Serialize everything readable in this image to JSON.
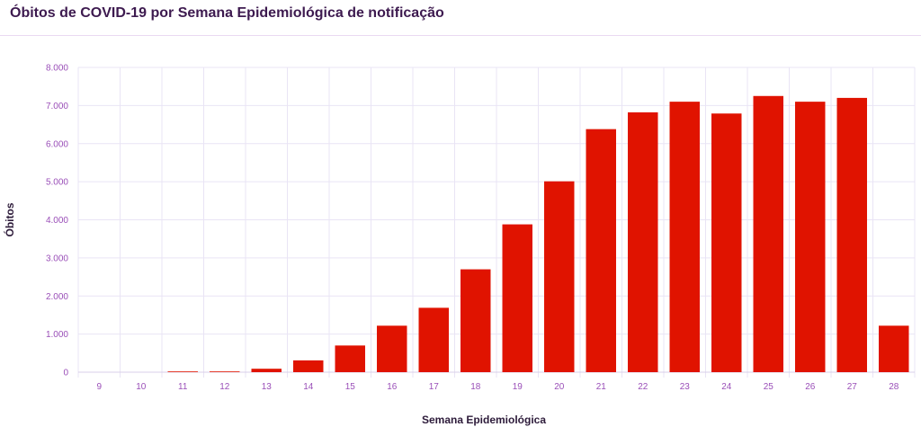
{
  "page": {
    "title": "Óbitos de COVID-19 por Semana Epidemiológica de notificação"
  },
  "colors": {
    "bar": "#e01300",
    "grid": "#e9e4f5",
    "tick_text": "#9a4fb8",
    "title": "#3d1a4f"
  },
  "chart_data": {
    "type": "bar",
    "title": "Óbitos de COVID-19 por Semana Epidemiológica de notificação",
    "xlabel": "Semana Epidemiológica",
    "ylabel": "Óbitos",
    "categories": [
      "9",
      "10",
      "11",
      "12",
      "13",
      "14",
      "15",
      "16",
      "17",
      "18",
      "19",
      "20",
      "21",
      "22",
      "23",
      "24",
      "25",
      "26",
      "27",
      "28"
    ],
    "values": [
      0,
      0,
      1,
      17,
      90,
      310,
      700,
      1220,
      1690,
      2700,
      3880,
      5010,
      6380,
      6820,
      7100,
      6790,
      7250,
      7100,
      7200,
      1220
    ],
    "ylim": [
      0,
      8000
    ],
    "yticks": [
      0,
      1000,
      2000,
      3000,
      4000,
      5000,
      6000,
      7000,
      8000
    ],
    "ytick_labels": [
      "0",
      "1.000",
      "2.000",
      "3.000",
      "4.000",
      "5.000",
      "6.000",
      "7.000",
      "8.000"
    ],
    "grid": true,
    "legend": "none"
  }
}
